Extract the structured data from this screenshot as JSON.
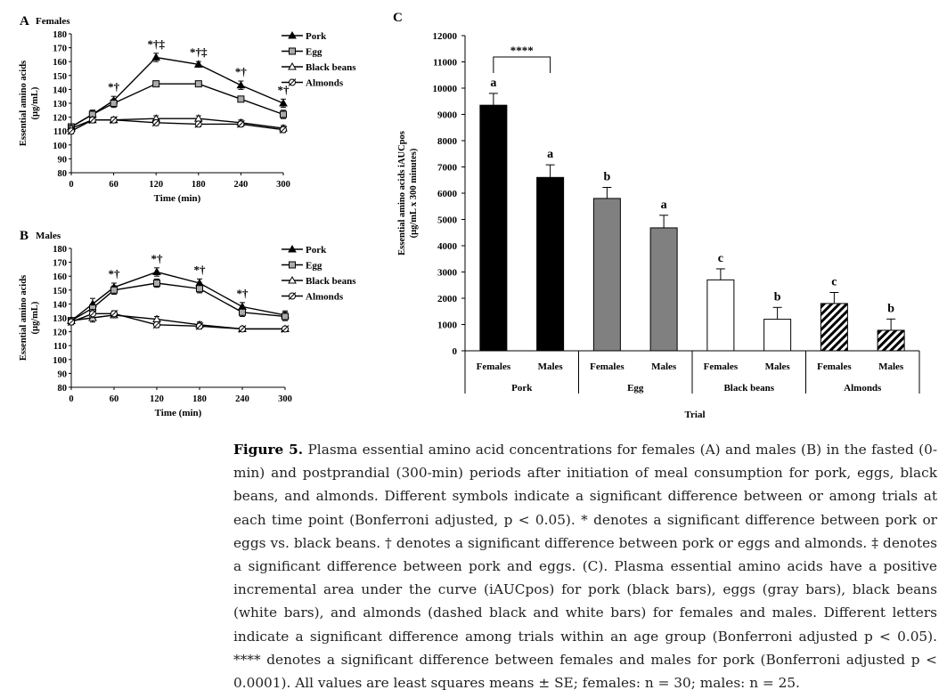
{
  "chart_data": [
    {
      "panel": "A",
      "type": "line",
      "title": "Females",
      "xlabel": "Time (min)",
      "ylabel": "Essential amino acids (μg/mL)",
      "xlim": [
        0,
        300
      ],
      "ylim": [
        80,
        180
      ],
      "xticks": [
        "0",
        "60",
        "120",
        "180",
        "240",
        "300"
      ],
      "yticks": [
        "80",
        "90",
        "100",
        "110",
        "120",
        "130",
        "140",
        "150",
        "160",
        "170",
        "180"
      ],
      "x": [
        0,
        30,
        60,
        120,
        180,
        240,
        300
      ],
      "legend": [
        "Pork",
        "Egg",
        "Black beans",
        "Almonds"
      ],
      "series": [
        {
          "name": "Pork",
          "marker": "triangle-filled",
          "values": [
            113,
            122,
            132,
            163,
            158,
            143,
            130
          ],
          "err": [
            2,
            3,
            3,
            3,
            2,
            3,
            3
          ]
        },
        {
          "name": "Egg",
          "marker": "square",
          "values": [
            113,
            122,
            130,
            144,
            144,
            133,
            122
          ],
          "err": [
            2,
            3,
            3,
            2,
            2,
            2,
            3
          ]
        },
        {
          "name": "Black beans",
          "marker": "triangle-open",
          "values": [
            112,
            118,
            118,
            119,
            119,
            116,
            112
          ],
          "err": [
            2,
            2,
            2,
            2,
            2,
            2,
            2
          ]
        },
        {
          "name": "Almonds",
          "marker": "slashed",
          "values": [
            110,
            118,
            118,
            116,
            115,
            115,
            111
          ],
          "err": [
            2,
            2,
            2,
            2,
            2,
            2,
            2
          ]
        }
      ],
      "annotations": [
        {
          "x": 60,
          "text": "*†"
        },
        {
          "x": 120,
          "text": "*†‡"
        },
        {
          "x": 180,
          "text": "*†‡"
        },
        {
          "x": 240,
          "text": "*†"
        },
        {
          "x": 300,
          "text": "*†"
        }
      ]
    },
    {
      "panel": "B",
      "type": "line",
      "title": "Males",
      "xlabel": "Time (min)",
      "ylabel": "Essential amino acids (μg/mL)",
      "xlim": [
        0,
        300
      ],
      "ylim": [
        80,
        180
      ],
      "xticks": [
        "0",
        "60",
        "120",
        "180",
        "240",
        "300"
      ],
      "yticks": [
        "80",
        "90",
        "100",
        "110",
        "120",
        "130",
        "140",
        "150",
        "160",
        "170",
        "180"
      ],
      "x": [
        0,
        30,
        60,
        120,
        180,
        240,
        300
      ],
      "legend": [
        "Pork",
        "Egg",
        "Black beans",
        "Almonds"
      ],
      "series": [
        {
          "name": "Pork",
          "marker": "triangle-filled",
          "values": [
            128,
            140,
            152,
            163,
            155,
            138,
            132
          ],
          "err": [
            2,
            4,
            3,
            3,
            3,
            3,
            3
          ]
        },
        {
          "name": "Egg",
          "marker": "square",
          "values": [
            128,
            137,
            150,
            155,
            151,
            134,
            131
          ],
          "err": [
            2,
            3,
            3,
            3,
            3,
            3,
            3
          ]
        },
        {
          "name": "Black beans",
          "marker": "triangle-open",
          "values": [
            128,
            130,
            132,
            129,
            125,
            122,
            122
          ],
          "err": [
            2,
            3,
            2,
            2,
            2,
            1,
            1
          ]
        },
        {
          "name": "Almonds",
          "marker": "slashed",
          "values": [
            127,
            133,
            133,
            125,
            124,
            122,
            122
          ],
          "err": [
            2,
            3,
            2,
            2,
            2,
            1,
            1
          ]
        }
      ],
      "annotations": [
        {
          "x": 60,
          "text": "*†"
        },
        {
          "x": 120,
          "text": "*†"
        },
        {
          "x": 180,
          "text": "*†"
        },
        {
          "x": 240,
          "text": "*†"
        }
      ]
    },
    {
      "panel": "C",
      "type": "bar",
      "xlabel": "Trial",
      "ylabel": "Essential amino acids iAUCpos (μg/mL x 300 minutes)",
      "ylim": [
        0,
        12000
      ],
      "yticks": [
        "0",
        "1000",
        "2000",
        "3000",
        "4000",
        "5000",
        "6000",
        "7000",
        "8000",
        "9000",
        "10000",
        "11000",
        "12000"
      ],
      "groups": [
        "Pork",
        "Egg",
        "Black beans",
        "Almonds"
      ],
      "categories": [
        "Females",
        "Males",
        "Females",
        "Males",
        "Females",
        "Males",
        "Females",
        "Males"
      ],
      "values": [
        9350,
        6600,
        5800,
        4680,
        2700,
        1200,
        1800,
        780
      ],
      "err": [
        450,
        480,
        420,
        480,
        420,
        450,
        420,
        430
      ],
      "letters": [
        "a",
        "a",
        "b",
        "a",
        "c",
        "b",
        "c",
        "b"
      ],
      "fills": [
        "black",
        "black",
        "gray",
        "gray",
        "white",
        "white",
        "hatched",
        "hatched"
      ],
      "colors": {
        "black": "#000000",
        "gray": "#808080",
        "white": "#ffffff"
      },
      "significance": {
        "from": 0,
        "to": 1,
        "text": "****"
      }
    }
  ],
  "caption": {
    "label": "Figure 5.",
    "text": "Plasma essential amino acid concentrations for females (A) and males (B) in the fasted (0-min) and postprandial (300-min) periods after initiation of meal consumption for pork, eggs, black beans, and almonds. Different symbols indicate a significant difference between or among trials at each time point (Bonferroni adjusted, p < 0.05). * denotes a significant difference between pork or eggs vs. black beans. † denotes a significant difference between pork or eggs and almonds. ‡ denotes a significant difference between pork and eggs. (C). Plasma essential amino acids have a positive incremental area under the curve (iAUCpos) for pork (black bars), eggs (gray bars), black beans (white bars), and almonds (dashed black and white bars) for females and males. Different letters indicate a significant difference among trials within an age group (Bonferroni adjusted p < 0.05). **** denotes a significant difference between females and males for pork (Bonferroni adjusted p < 0.0001). All values are least squares means ± SE; females: n = 30; males: n = 25."
  }
}
